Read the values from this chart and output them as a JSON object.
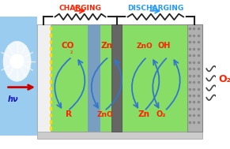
{
  "bg_color": "#ffffff",
  "sun_bg_color": "#99ccee",
  "electrolyte_color": "#88dd66",
  "separator_color": "#7799cc",
  "left_electrode_color": "#eeeeee",
  "center_electrode_color": "#777777",
  "right_electrode_color": "#aaaaaa",
  "bottom_color": "#bbbbbb",
  "top_wire_color": "#222222",
  "charging_color": "#ff2200",
  "discharging_color": "#2299ff",
  "arrow_color": "#3377cc",
  "label_color": "#ff2200",
  "o2_right_color": "#ff2200",
  "hv_color": "#1111cc",
  "red_arrow_color": "#cc0000",
  "charging_label": "CHARGING",
  "discharging_label": "DISCHARGING",
  "hv_label": "hν",
  "o2_label": "O₂",
  "figsize": [
    2.91,
    1.89
  ],
  "dpi": 100
}
